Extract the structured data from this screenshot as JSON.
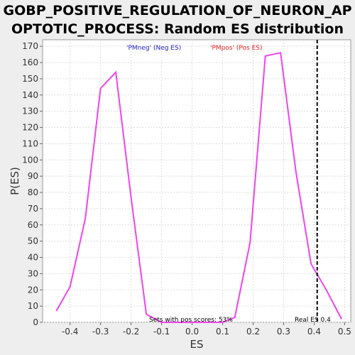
{
  "chart_data": {
    "type": "line",
    "title": "GOBP_POSITIVE_REGULATION_OF_NEURON_AP\nOPTOTIC_PROCESS: Random ES distribution",
    "xlabel": "ES",
    "ylabel": "P(ES)",
    "xlim": [
      -0.49,
      0.52
    ],
    "ylim": [
      0,
      174
    ],
    "x_ticks": [
      -0.4,
      -0.3,
      -0.2,
      -0.1,
      0.0,
      0.1,
      0.2,
      0.3,
      0.4,
      0.5
    ],
    "x_tick_labels": [
      "-0.4",
      "-0.3",
      "-0.2",
      "-0.1",
      "0.0",
      "0.1",
      "0.2",
      "0.3",
      "0.4",
      "0.5"
    ],
    "y_ticks": [
      0,
      10,
      20,
      30,
      40,
      50,
      60,
      70,
      80,
      90,
      100,
      110,
      120,
      130,
      140,
      150,
      160,
      170
    ],
    "grid": true,
    "series": [
      {
        "color": "#ee44ee",
        "x": [
          -0.445,
          -0.4,
          -0.35,
          -0.3,
          -0.25,
          -0.2,
          -0.15,
          -0.1,
          -0.05,
          0.0,
          0.05,
          0.1,
          0.14,
          0.19,
          0.24,
          0.29,
          0.34,
          0.39,
          0.44,
          0.49
        ],
        "y": [
          7,
          22,
          64,
          144,
          154,
          77,
          5,
          0,
          0,
          0,
          0,
          0,
          3,
          49,
          164,
          166,
          93,
          36,
          20,
          2
        ]
      }
    ],
    "legend": [
      {
        "label": "'PMneg' (Neg ES)",
        "color": "#2222cc"
      },
      {
        "label": "'PMpos' (Pos ES)",
        "color": "#dd2222"
      }
    ],
    "real_es": 0.41,
    "real_es_label": "Real ES 0.4",
    "annotation": "Sets with pos scores: 53%"
  }
}
